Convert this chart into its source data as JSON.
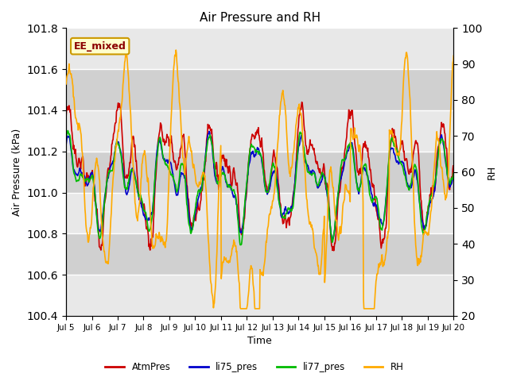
{
  "title": "Air Pressure and RH",
  "xlabel": "Time",
  "ylabel_left": "Air Pressure (kPa)",
  "ylabel_right": "RH",
  "annotation_text": "EE_mixed",
  "ylim_left": [
    100.4,
    101.8
  ],
  "ylim_right": [
    20,
    100
  ],
  "yticks_left": [
    100.4,
    100.6,
    100.8,
    101.0,
    101.2,
    101.4,
    101.6,
    101.8
  ],
  "yticks_right": [
    20,
    30,
    40,
    50,
    60,
    70,
    80,
    90,
    100
  ],
  "xtick_labels": [
    "Jul 5",
    "Jul 6",
    "Jul 7",
    "Jul 8",
    "Jul 9",
    "Jul 10",
    "Jul 11",
    "Jul 12",
    "Jul 13",
    "Jul 14",
    "Jul 15",
    "Jul 16",
    "Jul 17",
    "Jul 18",
    "Jul 19",
    "Jul 20"
  ],
  "color_atm": "#cc0000",
  "color_li75": "#0000cc",
  "color_li77": "#00bb00",
  "color_rh": "#ffaa00",
  "bg_color": "#dcdcdc",
  "band_color_light": "#e8e8e8",
  "band_color_dark": "#d0d0d0",
  "legend_entries": [
    "AtmPres",
    "li75_pres",
    "li77_pres",
    "RH"
  ],
  "linewidth": 1.2,
  "seed": 7,
  "n_points": 900
}
